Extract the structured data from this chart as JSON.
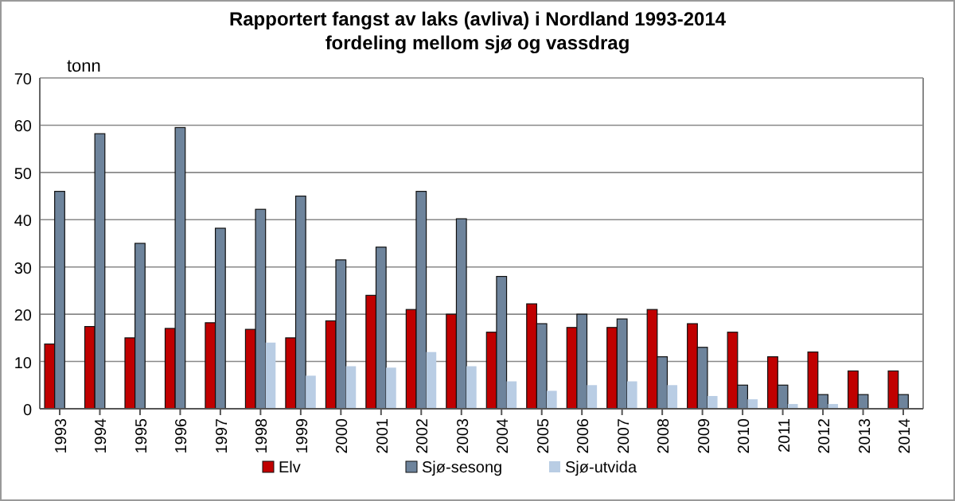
{
  "chart_data": {
    "type": "bar",
    "title": "Rapportert fangst av laks (avliva) i Nordland 1993-2014",
    "subtitle": "fordeling mellom sjø og vassdrag",
    "ylabel": "tonn",
    "categories": [
      "1993",
      "1994",
      "1995",
      "1996",
      "1997",
      "1998",
      "1999",
      "2000",
      "2001",
      "2002",
      "2003",
      "2004",
      "2005",
      "2006",
      "2007",
      "2008",
      "2009",
      "2010",
      "2011",
      "2012",
      "2013",
      "2014"
    ],
    "series": [
      {
        "name": "Elv",
        "color": "#c00000",
        "values": [
          13.7,
          17.4,
          15,
          17,
          18.2,
          16.8,
          15,
          18.6,
          24,
          21,
          20,
          16.2,
          22.2,
          17.2,
          17.2,
          21,
          18,
          16.2,
          11,
          12,
          8,
          8
        ]
      },
      {
        "name": "Sjø-sesong",
        "color": "#6e849c",
        "values": [
          46,
          58.2,
          35,
          59.5,
          38.2,
          42.2,
          45,
          31.5,
          34.2,
          46,
          40.2,
          28,
          18,
          20,
          19,
          11,
          13,
          5,
          5,
          3,
          3,
          3
        ]
      },
      {
        "name": "Sjø-utvida",
        "color": "#b9cde4",
        "values": [
          null,
          null,
          null,
          null,
          null,
          14,
          7,
          9,
          8.7,
          12,
          9,
          5.8,
          3.8,
          5,
          5.8,
          5,
          2.7,
          2,
          1,
          1,
          null,
          null
        ]
      }
    ],
    "ylim": [
      0,
      70
    ],
    "yticks": [
      0,
      10,
      20,
      30,
      40,
      50,
      60,
      70
    ],
    "grid": "y",
    "legend": "bottom"
  }
}
